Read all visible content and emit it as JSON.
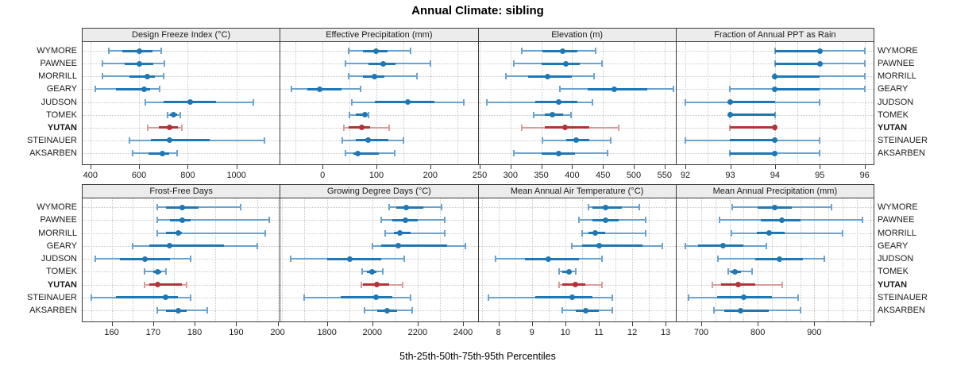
{
  "title": "Annual Climate: sibling",
  "caption": "5th-25th-50th-75th-95th Percentiles",
  "sites": [
    "WYMORE",
    "PAWNEE",
    "MORRILL",
    "GEARY",
    "JUDSON",
    "TOMEK",
    "YUTAN",
    "STEINAUER",
    "AKSARBEN"
  ],
  "highlight_site": "YUTAN",
  "percentiles": [
    5,
    25,
    50,
    75,
    95
  ],
  "colors": {
    "point_blue": "#1F77B4",
    "whisker_blue": "#6BA3CE",
    "point_red": "#B23438",
    "whisker_red": "#D99C9E",
    "grid": "#C9C9C9",
    "panel_border": "#3C3C3C",
    "strip_bg": "#ECECEC"
  },
  "chart_data": [
    {
      "type": "percentile-dotplot",
      "title": "Design Freeze Index (°C)",
      "xlim": [
        368,
        1178
      ],
      "ticks": [
        400,
        600,
        800,
        1000
      ],
      "tick_labels": [
        "400",
        "600",
        "800",
        "1000"
      ],
      "grid_at": [
        400,
        600,
        800,
        1000
      ],
      "values": [
        [
          475,
          530,
          600,
          655,
          690
        ],
        [
          450,
          540,
          600,
          660,
          705
        ],
        [
          448,
          560,
          635,
          665,
          700
        ],
        [
          420,
          505,
          620,
          645,
          685
        ],
        [
          625,
          700,
          810,
          915,
          1070
        ],
        [
          718,
          728,
          740,
          755,
          768
        ],
        [
          635,
          680,
          725,
          760,
          775
        ],
        [
          560,
          650,
          725,
          890,
          1115
        ],
        [
          575,
          640,
          695,
          725,
          755
        ]
      ]
    },
    {
      "type": "percentile-dotplot",
      "title": "Effective Precipitation (mm)",
      "xlim": [
        -78,
        288
      ],
      "ticks": [
        0,
        100,
        200
      ],
      "tick_labels": [
        "0",
        "100",
        "200"
      ],
      "grid_at": [
        -50,
        0,
        50,
        100,
        150,
        200,
        250
      ],
      "values": [
        [
          48,
          75,
          100,
          120,
          163
        ],
        [
          43,
          85,
          113,
          135,
          200
        ],
        [
          48,
          75,
          97,
          115,
          175
        ],
        [
          -57,
          -28,
          -5,
          35,
          70
        ],
        [
          55,
          97,
          158,
          207,
          262
        ],
        [
          50,
          62,
          78,
          82,
          86
        ],
        [
          40,
          48,
          73,
          88,
          123
        ],
        [
          37,
          62,
          85,
          122,
          150
        ],
        [
          42,
          57,
          66,
          104,
          134
        ]
      ]
    },
    {
      "type": "percentile-dotplot",
      "title": "Elevation (m)",
      "xlim": [
        248,
        568
      ],
      "ticks": [
        250,
        300,
        350,
        400,
        450,
        500,
        550
      ],
      "tick_labels": [
        "250",
        "300",
        "350",
        "400",
        "450",
        "500",
        "550"
      ],
      "grid_at": [
        250,
        300,
        350,
        400,
        450,
        500,
        550
      ],
      "values": [
        [
          318,
          352,
          385,
          408,
          438
        ],
        [
          305,
          350,
          390,
          412,
          448
        ],
        [
          293,
          328,
          360,
          400,
          435
        ],
        [
          380,
          425,
          468,
          522,
          565
        ],
        [
          262,
          340,
          378,
          408,
          433
        ],
        [
          338,
          355,
          368,
          385,
          398
        ],
        [
          318,
          355,
          388,
          428,
          475
        ],
        [
          352,
          390,
          407,
          428,
          462
        ],
        [
          305,
          350,
          378,
          405,
          458
        ]
      ]
    },
    {
      "type": "percentile-dotplot",
      "title": "Fraction of Annual PPT as Rain",
      "xlim": [
        91.8,
        96.2
      ],
      "ticks": [
        92,
        93,
        94,
        95,
        96
      ],
      "tick_labels": [
        "92",
        "93",
        "94",
        "95",
        "96"
      ],
      "grid_at": [
        92,
        92.5,
        93,
        93.5,
        94,
        94.5,
        95,
        95.5,
        96
      ],
      "values": [
        [
          94,
          94,
          95,
          95,
          96
        ],
        [
          94,
          94,
          95,
          95,
          96
        ],
        [
          94,
          94,
          94,
          95,
          96
        ],
        [
          93,
          94,
          94,
          95,
          96
        ],
        [
          92,
          93,
          93,
          94,
          95
        ],
        [
          93,
          93,
          93,
          94,
          94
        ],
        [
          93,
          93,
          94,
          94,
          94
        ],
        [
          92,
          93,
          94,
          94,
          95
        ],
        [
          93,
          93,
          94,
          94,
          95
        ]
      ]
    },
    {
      "type": "percentile-dotplot",
      "title": "Frost-Free Days",
      "xlim": [
        153,
        200.5
      ],
      "ticks": [
        160,
        170,
        180,
        190,
        200
      ],
      "tick_labels": [
        "160",
        "170",
        "180",
        "190",
        "200"
      ],
      "grid_at": [
        155,
        160,
        165,
        170,
        175,
        180,
        185,
        190,
        195,
        200
      ],
      "values": [
        [
          171,
          173,
          177,
          181,
          191
        ],
        [
          171,
          174,
          177,
          179,
          198
        ],
        [
          171,
          173,
          176,
          177,
          197
        ],
        [
          165,
          169,
          174,
          187,
          195
        ],
        [
          156,
          162,
          168,
          174,
          179
        ],
        [
          168,
          170,
          171,
          172,
          173
        ],
        [
          168,
          169,
          171,
          177,
          178
        ],
        [
          155,
          161,
          173,
          176,
          179
        ],
        [
          171,
          173,
          176,
          178,
          183
        ]
      ]
    },
    {
      "type": "percentile-dotplot",
      "title": "Growing Degree Days (°C)",
      "xlim": [
        1595,
        2465
      ],
      "ticks": [
        1800,
        2000,
        2200,
        2400
      ],
      "tick_labels": [
        "1800",
        "2000",
        "2200",
        "2400"
      ],
      "grid_at": [
        1600,
        1700,
        1800,
        1900,
        2000,
        2100,
        2200,
        2300,
        2400
      ],
      "values": [
        [
          2075,
          2105,
          2150,
          2225,
          2305
        ],
        [
          2040,
          2090,
          2145,
          2200,
          2320
        ],
        [
          2055,
          2095,
          2120,
          2170,
          2320
        ],
        [
          2000,
          2040,
          2115,
          2330,
          2410
        ],
        [
          1640,
          1800,
          1900,
          2040,
          2140
        ],
        [
          1955,
          1975,
          2000,
          2020,
          2045
        ],
        [
          1950,
          1960,
          2020,
          2075,
          2135
        ],
        [
          1700,
          1860,
          2015,
          2090,
          2170
        ],
        [
          1965,
          2020,
          2065,
          2110,
          2175
        ]
      ]
    },
    {
      "type": "percentile-dotplot",
      "title": "Mean Annual Air Temperature (°C)",
      "xlim": [
        7.4,
        13.3
      ],
      "ticks": [
        8,
        9,
        10,
        11,
        12,
        13
      ],
      "tick_labels": [
        "8",
        "9",
        "10",
        "11",
        "12",
        "13"
      ],
      "grid_at": [
        7.5,
        8,
        8.5,
        9,
        9.5,
        10,
        10.5,
        11,
        11.5,
        12,
        12.5,
        13
      ],
      "values": [
        [
          10.7,
          10.8,
          11.2,
          11.7,
          12.2
        ],
        [
          10.4,
          10.8,
          11.2,
          11.6,
          12.4
        ],
        [
          10.5,
          10.7,
          10.9,
          11.2,
          12.4
        ],
        [
          10.2,
          10.5,
          11.0,
          12.3,
          12.9
        ],
        [
          7.9,
          8.8,
          9.5,
          10.4,
          11.1
        ],
        [
          9.8,
          9.9,
          10.1,
          10.2,
          10.3
        ],
        [
          9.8,
          9.9,
          10.3,
          10.6,
          11.1
        ],
        [
          7.7,
          9.1,
          10.2,
          10.8,
          11.4
        ],
        [
          9.9,
          10.3,
          10.6,
          11.0,
          11.4
        ]
      ]
    },
    {
      "type": "percentile-dotplot",
      "title": "Mean Annual Precipitation (mm)",
      "xlim": [
        656,
        1005
      ],
      "ticks": [
        700,
        800,
        900,
        1000
      ],
      "tick_labels": [
        "700",
        "800",
        "900",
        ""
      ],
      "grid_at": [
        675,
        700,
        725,
        750,
        775,
        800,
        825,
        850,
        875,
        900,
        925,
        950,
        975,
        1000
      ],
      "values": [
        [
          755,
          800,
          830,
          860,
          930
        ],
        [
          732,
          805,
          843,
          875,
          985
        ],
        [
          753,
          798,
          820,
          848,
          950
        ],
        [
          672,
          695,
          738,
          775,
          815
        ],
        [
          730,
          795,
          838,
          880,
          918
        ],
        [
          748,
          752,
          760,
          770,
          790
        ],
        [
          720,
          735,
          765,
          795,
          843
        ],
        [
          678,
          728,
          775,
          825,
          872
        ],
        [
          723,
          740,
          770,
          820,
          875
        ]
      ]
    }
  ]
}
